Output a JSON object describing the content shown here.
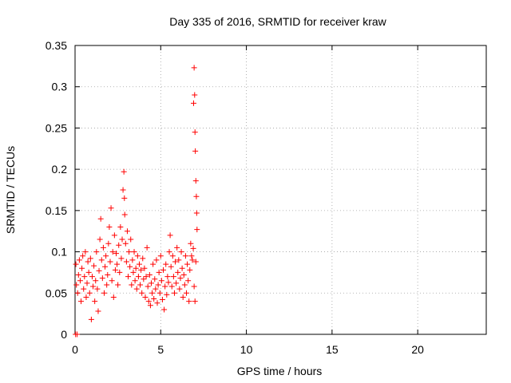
{
  "chart_data": {
    "type": "scatter",
    "title": "Day 335 of 2016, SRMTID for receiver kraw",
    "xlabel": "GPS time / hours",
    "ylabel": "SRMTID / TECUs",
    "xlim": [
      0,
      24
    ],
    "ylim": [
      0,
      0.35
    ],
    "xticks": [
      0,
      5,
      10,
      15,
      20
    ],
    "xtick_labels": [
      "0",
      "5",
      "10",
      "15",
      "20"
    ],
    "yticks": [
      0,
      0.05,
      0.1,
      0.15,
      0.2,
      0.25,
      0.3,
      0.35
    ],
    "ytick_labels": [
      "0",
      "0.05",
      "0.1",
      "0.15",
      "0.2",
      "0.25",
      "0.3",
      "0.35"
    ],
    "grid": true,
    "marker": "+",
    "marker_color": "#ff0000",
    "series": [
      {
        "name": "SRMTID",
        "points": [
          [
            0.03,
            0.0
          ],
          [
            0.12,
            0.0
          ],
          [
            0.05,
            0.085
          ],
          [
            0.08,
            0.06
          ],
          [
            0.15,
            0.05
          ],
          [
            0.2,
            0.072
          ],
          [
            0.25,
            0.09
          ],
          [
            0.3,
            0.065
          ],
          [
            0.35,
            0.04
          ],
          [
            0.4,
            0.08
          ],
          [
            0.45,
            0.095
          ],
          [
            0.5,
            0.055
          ],
          [
            0.55,
            0.07
          ],
          [
            0.6,
            0.1
          ],
          [
            0.65,
            0.045
          ],
          [
            0.7,
            0.062
          ],
          [
            0.75,
            0.088
          ],
          [
            0.8,
            0.075
          ],
          [
            0.85,
            0.05
          ],
          [
            0.9,
            0.092
          ],
          [
            0.95,
            0.018
          ],
          [
            1.0,
            0.07
          ],
          [
            1.05,
            0.058
          ],
          [
            1.1,
            0.083
          ],
          [
            1.15,
            0.04
          ],
          [
            1.2,
            0.065
          ],
          [
            1.25,
            0.1
          ],
          [
            1.3,
            0.055
          ],
          [
            1.35,
            0.028
          ],
          [
            1.4,
            0.077
          ],
          [
            1.45,
            0.115
          ],
          [
            1.5,
            0.14
          ],
          [
            1.55,
            0.09
          ],
          [
            1.6,
            0.068
          ],
          [
            1.65,
            0.105
          ],
          [
            1.7,
            0.05
          ],
          [
            1.75,
            0.082
          ],
          [
            1.8,
            0.095
          ],
          [
            1.85,
            0.06
          ],
          [
            1.9,
            0.072
          ],
          [
            1.95,
            0.11
          ],
          [
            2.0,
            0.13
          ],
          [
            2.05,
            0.088
          ],
          [
            2.1,
            0.153
          ],
          [
            2.15,
            0.065
          ],
          [
            2.2,
            0.1
          ],
          [
            2.25,
            0.045
          ],
          [
            2.3,
            0.12
          ],
          [
            2.35,
            0.078
          ],
          [
            2.4,
            0.098
          ],
          [
            2.45,
            0.085
          ],
          [
            2.5,
            0.06
          ],
          [
            2.55,
            0.108
          ],
          [
            2.6,
            0.075
          ],
          [
            2.65,
            0.13
          ],
          [
            2.7,
            0.092
          ],
          [
            2.75,
            0.115
          ],
          [
            2.8,
            0.175
          ],
          [
            2.85,
            0.197
          ],
          [
            2.88,
            0.165
          ],
          [
            2.9,
            0.145
          ],
          [
            2.95,
            0.11
          ],
          [
            3.0,
            0.088
          ],
          [
            3.05,
            0.125
          ],
          [
            3.1,
            0.07
          ],
          [
            3.15,
            0.1
          ],
          [
            3.2,
            0.082
          ],
          [
            3.25,
            0.115
          ],
          [
            3.3,
            0.06
          ],
          [
            3.35,
            0.09
          ],
          [
            3.4,
            0.075
          ],
          [
            3.45,
            0.1
          ],
          [
            3.5,
            0.065
          ],
          [
            3.55,
            0.08
          ],
          [
            3.6,
            0.055
          ],
          [
            3.65,
            0.095
          ],
          [
            3.7,
            0.07
          ],
          [
            3.75,
            0.085
          ],
          [
            3.8,
            0.06
          ],
          [
            3.85,
            0.078
          ],
          [
            3.9,
            0.05
          ],
          [
            3.95,
            0.092
          ],
          [
            4.0,
            0.067
          ],
          [
            4.05,
            0.08
          ],
          [
            4.1,
            0.045
          ],
          [
            4.15,
            0.07
          ],
          [
            4.2,
            0.105
          ],
          [
            4.25,
            0.058
          ],
          [
            4.3,
            0.04
          ],
          [
            4.35,
            0.072
          ],
          [
            4.4,
            0.035
          ],
          [
            4.45,
            0.062
          ],
          [
            4.5,
            0.05
          ],
          [
            4.55,
            0.085
          ],
          [
            4.6,
            0.043
          ],
          [
            4.65,
            0.067
          ],
          [
            4.7,
            0.055
          ],
          [
            4.75,
            0.09
          ],
          [
            4.8,
            0.038
          ],
          [
            4.85,
            0.06
          ],
          [
            4.9,
            0.075
          ],
          [
            4.95,
            0.05
          ],
          [
            5.0,
            0.095
          ],
          [
            5.05,
            0.065
          ],
          [
            5.1,
            0.042
          ],
          [
            5.15,
            0.078
          ],
          [
            5.2,
            0.03
          ],
          [
            5.25,
            0.058
          ],
          [
            5.3,
            0.085
          ],
          [
            5.35,
            0.048
          ],
          [
            5.4,
            0.07
          ],
          [
            5.45,
            0.063
          ],
          [
            5.5,
            0.1
          ],
          [
            5.55,
            0.12
          ],
          [
            5.6,
            0.082
          ],
          [
            5.65,
            0.058
          ],
          [
            5.7,
            0.095
          ],
          [
            5.75,
            0.07
          ],
          [
            5.8,
            0.05
          ],
          [
            5.85,
            0.088
          ],
          [
            5.9,
            0.062
          ],
          [
            5.95,
            0.105
          ],
          [
            6.0,
            0.075
          ],
          [
            6.05,
            0.09
          ],
          [
            6.1,
            0.055
          ],
          [
            6.15,
            0.068
          ],
          [
            6.2,
            0.1
          ],
          [
            6.25,
            0.08
          ],
          [
            6.3,
            0.045
          ],
          [
            6.35,
            0.072
          ],
          [
            6.4,
            0.06
          ],
          [
            6.45,
            0.095
          ],
          [
            6.5,
            0.05
          ],
          [
            6.55,
            0.085
          ],
          [
            6.6,
            0.065
          ],
          [
            6.65,
            0.04
          ],
          [
            6.7,
            0.078
          ],
          [
            6.75,
            0.11
          ],
          [
            6.8,
            0.095
          ],
          [
            6.85,
            0.09
          ],
          [
            6.9,
            0.104
          ],
          [
            6.92,
            0.28
          ],
          [
            6.95,
            0.323
          ],
          [
            6.98,
            0.29
          ],
          [
            7.0,
            0.245
          ],
          [
            7.02,
            0.222
          ],
          [
            7.05,
            0.186
          ],
          [
            7.08,
            0.167
          ],
          [
            7.1,
            0.147
          ],
          [
            7.12,
            0.127
          ],
          [
            7.0,
            0.04
          ],
          [
            6.95,
            0.058
          ],
          [
            7.05,
            0.088
          ]
        ]
      }
    ]
  }
}
